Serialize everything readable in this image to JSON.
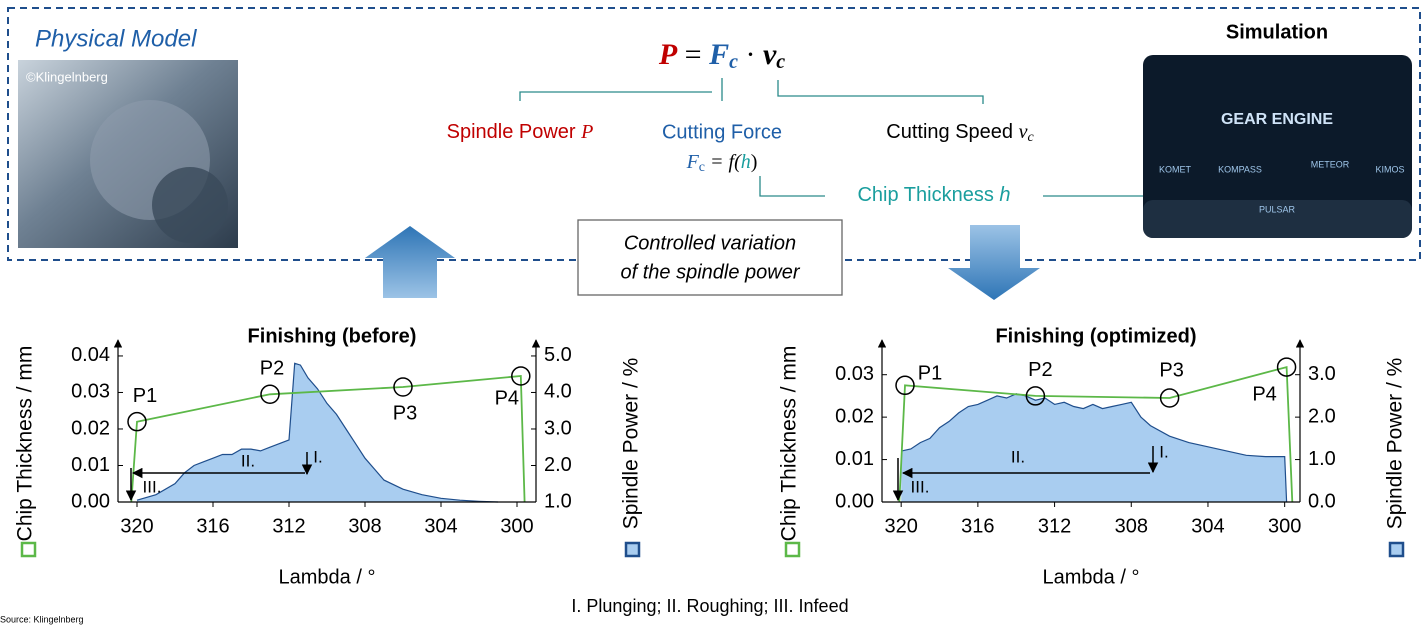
{
  "header": {
    "physical_model": "Physical Model",
    "copyright": "©Klingelnberg",
    "simulation": "Simulation",
    "sim_logo": "GEAR ENGINE",
    "sim_labels": [
      "KOMET",
      "KOMPASS",
      "PULSAR",
      "METEOR",
      "KIMOS"
    ]
  },
  "formula": {
    "power": "P",
    "equals": " = ",
    "force": "F",
    "force_sub": "c",
    "dot": " · ",
    "speed": "v",
    "speed_sub": "c"
  },
  "labels": {
    "spindle_power": "Spindle Power ",
    "spindle_symbol": "P",
    "cutting_force": "Cutting Force",
    "force_relation": {
      "symbol": "F",
      "sub": "c",
      "rest": " = f(",
      "var": "h",
      "close": ")"
    },
    "cutting_speed": "Cutting Speed ",
    "speed_symbol": "v",
    "speed_sub": "c",
    "chip_thickness": "Chip Thickness ",
    "chip_symbol": "h"
  },
  "center_box": [
    "Controlled variation",
    "of the spindle power"
  ],
  "footnote": "I. Plunging; II. Roughing; III. Infeed",
  "source": "Source: Klingelnberg",
  "chart_data": [
    {
      "type": "line",
      "title": "Finishing (before)",
      "x_label": "Lambda / °",
      "y_label": "Chip Thickness / mm",
      "y2_label": "Spindle Power / %",
      "xlim": [
        321,
        299
      ],
      "xticks": [
        320,
        316,
        312,
        308,
        304,
        300
      ],
      "ylim": [
        0,
        0.043
      ],
      "yticks": [
        {
          "value": 0,
          "label": "0.00"
        },
        {
          "value": 0.01,
          "label": "0.01"
        },
        {
          "value": 0.02,
          "label": "0.02"
        },
        {
          "value": 0.03,
          "label": "0.03"
        },
        {
          "value": 0.04,
          "label": "0.04"
        }
      ],
      "y2lim": [
        1.0,
        5.3
      ],
      "y2ticks": [
        {
          "value": 1,
          "label": "1.0"
        },
        {
          "value": 2,
          "label": "2.0"
        },
        {
          "value": 3,
          "label": "3.0"
        },
        {
          "value": 4,
          "label": "4.0"
        },
        {
          "value": 5,
          "label": "5.0"
        }
      ],
      "phase_labels": [
        "I.",
        "II.",
        "III."
      ],
      "series": [
        {
          "axis": "y2",
          "fill": true,
          "color": "#a9cdf0",
          "line_color": "#1f4e8c",
          "x": [
            320,
            319,
            318,
            317.5,
            317,
            316.5,
            316,
            315.5,
            315,
            314.5,
            314,
            313.5,
            313,
            312.5,
            312,
            311.7,
            311.4,
            311,
            310.5,
            310,
            309.5,
            309,
            308.5,
            308,
            307.5,
            307,
            306,
            305,
            304,
            303,
            302,
            301
          ],
          "values": [
            1.05,
            1.2,
            1.5,
            1.8,
            2.0,
            2.1,
            2.2,
            2.3,
            2.3,
            2.45,
            2.45,
            2.4,
            2.5,
            2.6,
            2.7,
            4.8,
            4.75,
            4.4,
            4.1,
            3.7,
            3.4,
            3.0,
            2.6,
            2.2,
            1.9,
            1.6,
            1.35,
            1.2,
            1.1,
            1.05,
            1.02,
            1.0
          ]
        },
        {
          "axis": "y",
          "color": "#5cb848",
          "x": [
            320.3,
            320,
            313,
            306,
            299.8,
            299.6
          ],
          "values": [
            0,
            0.022,
            0.0295,
            0.0315,
            0.0345,
            0
          ],
          "point_labels": [
            null,
            "P1",
            "P2",
            "P3",
            "P4",
            null
          ]
        }
      ]
    },
    {
      "type": "line",
      "title": "Finishing (optimized)",
      "x_label": "Lambda / °",
      "y_label": "Chip Thickness / mm",
      "y2_label": "Spindle Power / %",
      "xlim": [
        321,
        299.2
      ],
      "xticks": [
        320,
        316,
        312,
        308,
        304,
        300
      ],
      "ylim": [
        0,
        0.037
      ],
      "yticks": [
        {
          "value": 0,
          "label": "0.00"
        },
        {
          "value": 0.01,
          "label": "0.01"
        },
        {
          "value": 0.02,
          "label": "0.02"
        },
        {
          "value": 0.03,
          "label": "0.03"
        }
      ],
      "y2lim": [
        0,
        3.7
      ],
      "y2ticks": [
        {
          "value": 0,
          "label": "0.0"
        },
        {
          "value": 1,
          "label": "1.0"
        },
        {
          "value": 2,
          "label": "2.0"
        },
        {
          "value": 3,
          "label": "3.0"
        }
      ],
      "phase_labels": [
        "I.",
        "II.",
        "III."
      ],
      "series": [
        {
          "axis": "y2",
          "fill": true,
          "color": "#a9cdf0",
          "line_color": "#1f4e8c",
          "x": [
            320,
            319.5,
            319,
            318.5,
            318,
            317.5,
            317,
            316.5,
            316,
            315.5,
            315,
            314.5,
            314,
            313.5,
            313,
            312.5,
            312,
            311.5,
            311,
            310.5,
            310,
            309.5,
            309,
            308.5,
            308,
            307.5,
            307,
            306,
            305,
            304,
            303,
            302,
            301,
            300,
            299.9
          ],
          "values": [
            1.2,
            1.25,
            1.4,
            1.5,
            1.75,
            1.9,
            2.1,
            2.25,
            2.3,
            2.4,
            2.5,
            2.45,
            2.55,
            2.5,
            2.4,
            2.45,
            2.3,
            2.35,
            2.25,
            2.2,
            2.3,
            2.2,
            2.25,
            2.3,
            2.35,
            2.0,
            1.8,
            1.55,
            1.4,
            1.3,
            1.2,
            1.1,
            1.07,
            1.07,
            0
          ]
        },
        {
          "axis": "y",
          "color": "#5cb848",
          "x": [
            320.1,
            319.8,
            313,
            306,
            299.9,
            299.6
          ],
          "values": [
            0,
            0.0275,
            0.025,
            0.0245,
            0.0318,
            0
          ],
          "point_labels": [
            null,
            "P1",
            "P2",
            "P3",
            "P4",
            null
          ]
        }
      ]
    }
  ]
}
